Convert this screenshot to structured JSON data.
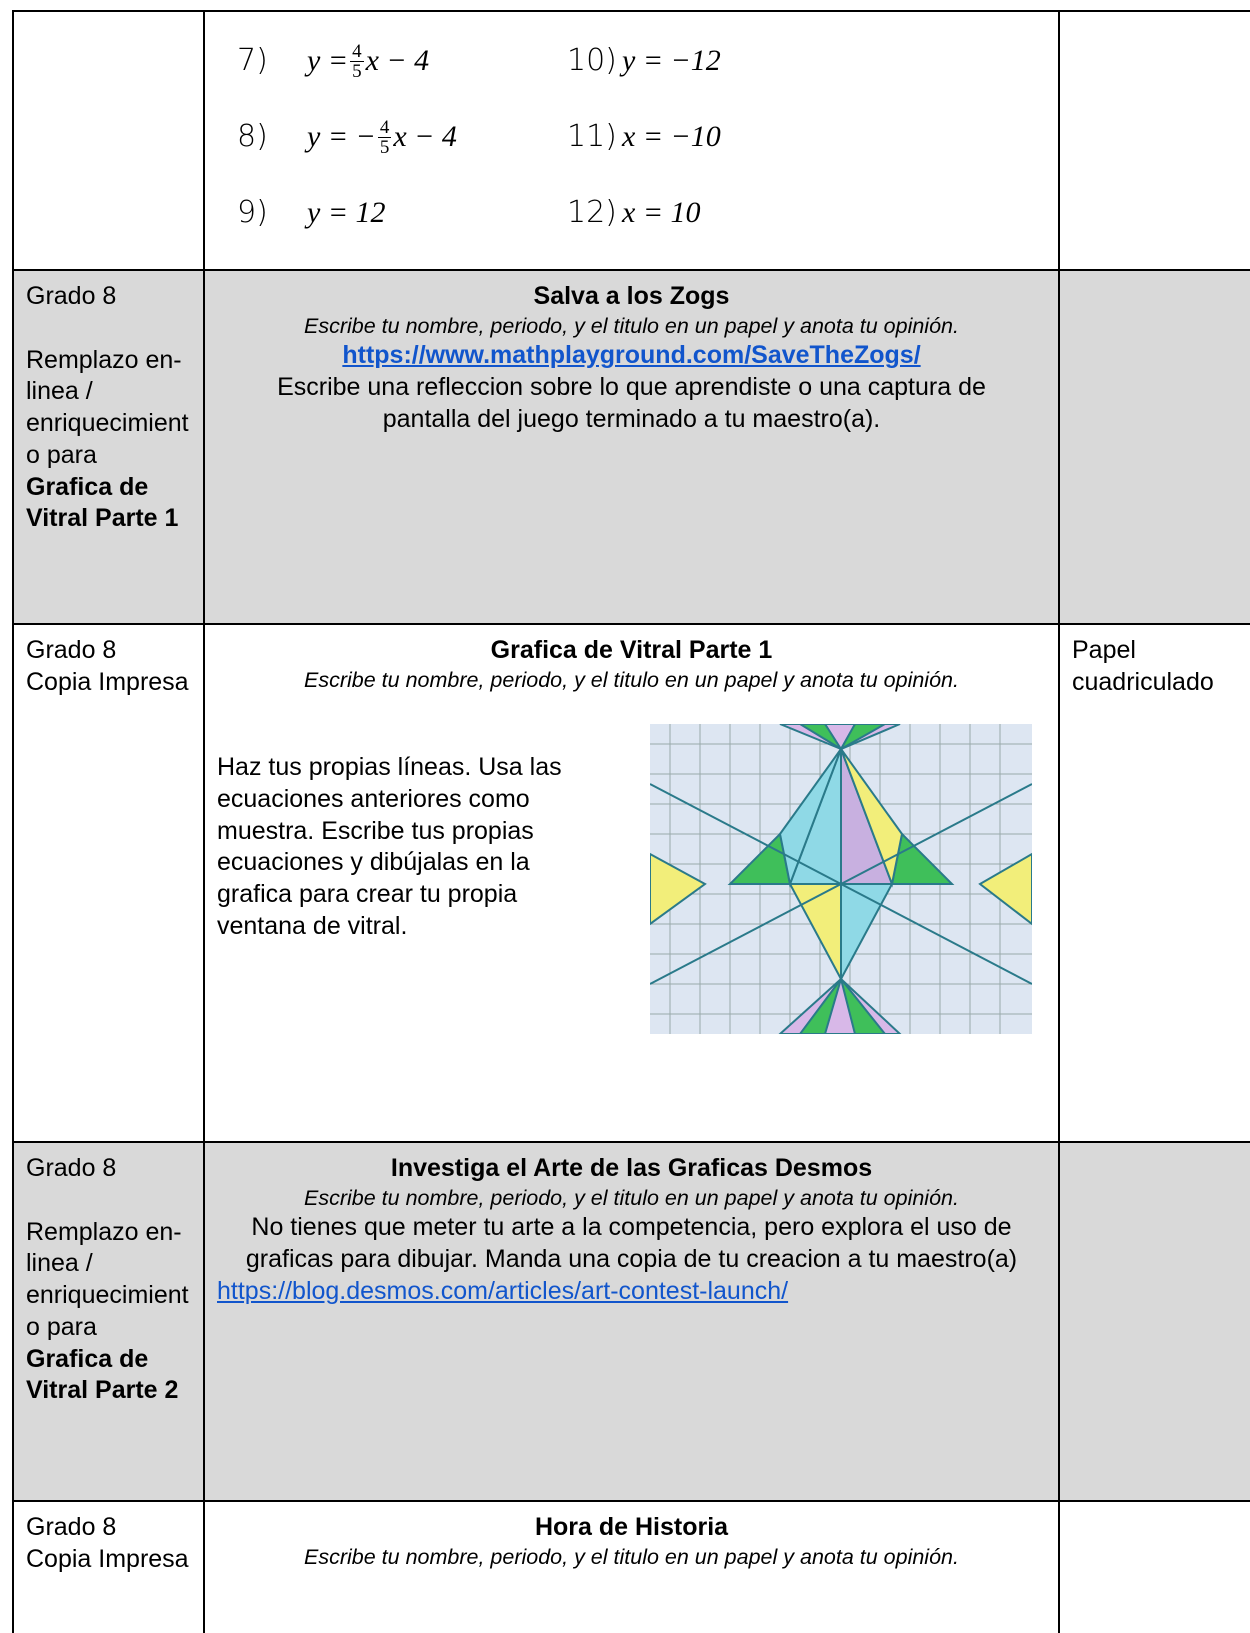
{
  "table": {
    "rows": [
      {
        "equations": [
          {
            "number": "7)",
            "prefix": "y = ",
            "num": "4",
            "den": "5",
            "suffix": "x − 4"
          },
          {
            "number": "10)",
            "expr": "y = −12"
          },
          {
            "number": "8)",
            "prefix": "y = −",
            "num": "4",
            "den": "5",
            "suffix": "x − 4"
          },
          {
            "number": "11)",
            "expr": "x = −10"
          },
          {
            "number": "9)",
            "expr": "y = 12"
          },
          {
            "number": "12)",
            "expr": "x = 10"
          }
        ]
      },
      {
        "grade": "Grado 8",
        "note": "Remplazo en-linea / enriquecimiento para",
        "unit": "Grafica de Vitral Parte 1",
        "title": "Salva a los Zogs",
        "instructions": "Escribe tu nombre, periodo, y el titulo en un papel y anota tu opinión.",
        "link": "https://www.mathplayground.com/SaveTheZogs/",
        "body": "Escribe una refleccion sobre lo que aprendiste o una captura de pantalla del juego terminado a tu maestro(a)."
      },
      {
        "grade": "Grado 8",
        "format": "Copia Impresa",
        "title": "Grafica de Vitral Parte 1",
        "instructions": "Escribe tu nombre, periodo, y el titulo en un papel y anota tu opinión.",
        "body": "Haz tus propias líneas. Usa las ecuaciones anteriores como muestra. Escribe tus propias ecuaciones y dibújalas en la grafica para crear tu propia ventana de vitral.",
        "materials": "Papel cuadriculado"
      },
      {
        "grade": "Grado 8",
        "note": "Remplazo en-linea / enriquecimiento para",
        "unit": "Grafica de Vitral Parte 2",
        "title": "Investiga el Arte de las Graficas Desmos",
        "instructions": "Escribe tu nombre, periodo, y el titulo en un papel y anota tu opinión.",
        "body": "No tienes que meter tu arte a la competencia, pero explora el uso de graficas para dibujar. Manda una copia de tu creacion a tu maestro(a)",
        "link": "https://blog.desmos.com/articles/art-contest-launch/"
      },
      {
        "grade": "Grado 8",
        "format": "Copia Impresa",
        "title": "Hora de Historia",
        "instructions": "Escribe tu nombre, periodo, y el titulo en un papel y anota tu opinión."
      }
    ]
  }
}
